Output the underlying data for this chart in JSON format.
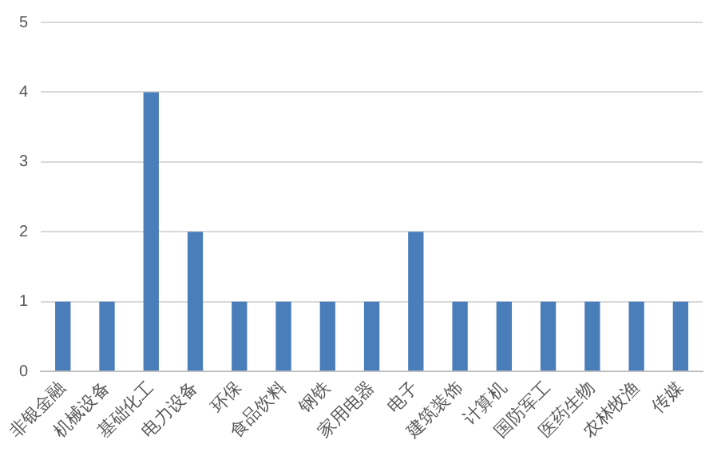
{
  "chart_data": {
    "type": "bar",
    "categories": [
      "非银金融",
      "机械设备",
      "基础化工",
      "电力设备",
      "环保",
      "食品饮料",
      "钢铁",
      "家用电器",
      "电子",
      "建筑装饰",
      "计算机",
      "国防军工",
      "医药生物",
      "农林牧渔",
      "传媒"
    ],
    "values": [
      1,
      1,
      4,
      2,
      1,
      1,
      1,
      1,
      2,
      1,
      1,
      1,
      1,
      1,
      1
    ],
    "color": "#4a7ebb",
    "ylim": [
      0,
      5
    ],
    "yticks": [
      0,
      1,
      2,
      3,
      4,
      5
    ],
    "grid": "y",
    "legend": false
  }
}
